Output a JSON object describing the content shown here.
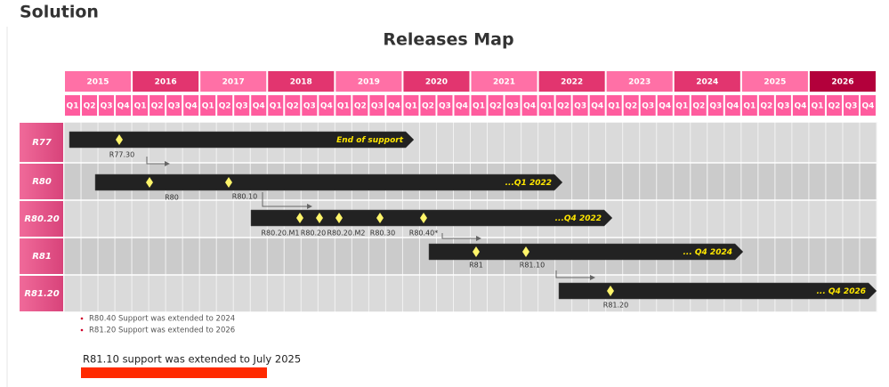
{
  "header": {
    "title": "Solution"
  },
  "map": {
    "title": "Releases Map",
    "years": [
      "2015",
      "2016",
      "2017",
      "2018",
      "2019",
      "2020",
      "2021",
      "2022",
      "2023",
      "2024",
      "2025",
      "2026"
    ],
    "quarters": [
      "Q1",
      "Q2",
      "Q3",
      "Q4"
    ],
    "rows": [
      {
        "label": "R77",
        "end_label": "End of  support",
        "milestones": [
          "R77.30"
        ]
      },
      {
        "label": "R80",
        "end_label": "...Q1 2022",
        "milestones": [
          "R80",
          "R80.10"
        ]
      },
      {
        "label": "R80.20",
        "end_label": "...Q4 2022",
        "milestones": [
          "R80.20.M1",
          "R80.20",
          "R80.20.M2",
          "R80.30",
          "R80.40*"
        ]
      },
      {
        "label": "R81",
        "end_label": "... Q4 2024",
        "milestones": [
          "R81",
          "R81.10"
        ]
      },
      {
        "label": "R81.20",
        "end_label": "... Q4 2026",
        "milestones": [
          "R81.20"
        ]
      }
    ]
  },
  "notes": [
    "R80.40 Support was extended to 2024",
    "R81.20 Support was extended to 2026"
  ],
  "highlight": "R81.10 support was extended to July 2025"
}
